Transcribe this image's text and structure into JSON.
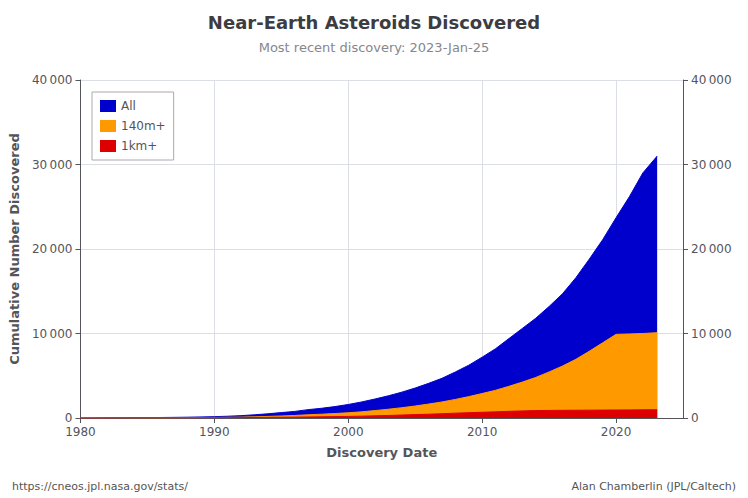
{
  "chart_data": {
    "type": "area",
    "title": "Near-Earth Asteroids Discovered",
    "subtitle": "Most recent discovery: 2023-Jan-25",
    "xlabel": "Discovery Date",
    "ylabel": "Cumulative Number Discovered",
    "annotations": [
      "https://cneos.jpl.nasa.gov/stats/",
      "Alan Chamberlin (JPL/Caltech)"
    ],
    "x": [
      1980,
      1981,
      1982,
      1983,
      1984,
      1985,
      1986,
      1987,
      1988,
      1989,
      1990,
      1991,
      1992,
      1993,
      1994,
      1995,
      1996,
      1997,
      1998,
      1999,
      2000,
      2001,
      2002,
      2003,
      2004,
      2005,
      2006,
      2007,
      2008,
      2009,
      2010,
      2011,
      2012,
      2013,
      2014,
      2015,
      2016,
      2017,
      2018,
      2019,
      2020,
      2021,
      2022,
      2023.07
    ],
    "series": [
      {
        "name": "All",
        "color": "#0000cc",
        "values": [
          0,
          10,
          20,
          30,
          40,
          50,
          60,
          75,
          95,
          125,
          160,
          210,
          280,
          380,
          500,
          640,
          780,
          990,
          1150,
          1350,
          1600,
          1900,
          2250,
          2630,
          3060,
          3550,
          4100,
          4700,
          5450,
          6250,
          7200,
          8200,
          9400,
          10600,
          11800,
          13200,
          14700,
          16600,
          18800,
          21100,
          23700,
          26200,
          29000,
          31000
        ]
      },
      {
        "name": "140m+",
        "color": "#ff9900",
        "values": [
          0,
          5,
          10,
          15,
          18,
          22,
          26,
          32,
          40,
          52,
          65,
          82,
          105,
          140,
          185,
          240,
          300,
          380,
          450,
          530,
          620,
          730,
          880,
          1040,
          1220,
          1420,
          1650,
          1900,
          2200,
          2530,
          2900,
          3280,
          3750,
          4250,
          4800,
          5450,
          6150,
          6950,
          7900,
          8900,
          9900,
          9950,
          10000,
          10100
        ]
      },
      {
        "name": "1km+",
        "color": "#dd0000",
        "values": [
          0,
          3,
          5,
          7,
          9,
          11,
          13,
          16,
          20,
          26,
          32,
          39,
          48,
          58,
          70,
          85,
          100,
          120,
          145,
          165,
          190,
          220,
          260,
          300,
          350,
          400,
          450,
          510,
          570,
          630,
          680,
          730,
          790,
          840,
          880,
          900,
          910,
          920,
          930,
          940,
          950,
          960,
          970,
          980
        ]
      }
    ],
    "xlim": [
      1980,
      2025
    ],
    "xticks": [
      1980,
      1990,
      2000,
      2010,
      2020
    ],
    "ylim": [
      0,
      40000
    ],
    "yticks": [
      0,
      {
        "value": 10000,
        "label": "10 000"
      },
      {
        "value": 20000,
        "label": "20 000"
      },
      {
        "value": 30000,
        "label": "30 000"
      },
      {
        "value": 40000,
        "label": "40 000"
      }
    ],
    "y2lim": [
      0,
      40000
    ],
    "y2ticks": [
      0,
      {
        "value": 10000,
        "label": "10 000"
      },
      {
        "value": 20000,
        "label": "20 000"
      },
      {
        "value": 30000,
        "label": "30 000"
      },
      {
        "value": 40000,
        "label": "40 000"
      }
    ],
    "grid": true,
    "legend": "upper left"
  }
}
